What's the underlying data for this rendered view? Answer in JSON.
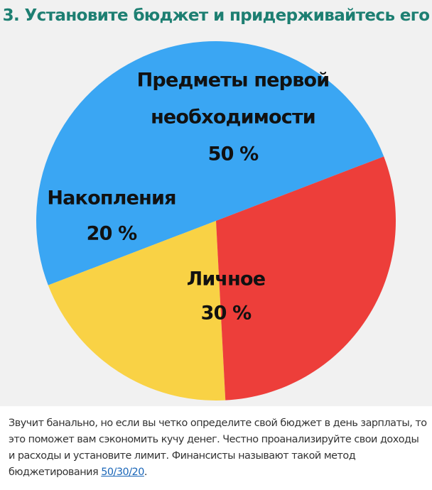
{
  "headline": "3. Установите бюджет и придерживайтесь его",
  "chart_data": {
    "type": "pie",
    "slices": [
      {
        "label_lines": [
          "Предметы первой",
          "необходимости"
        ],
        "value": 50,
        "value_label": "50 %",
        "color": "#3aa6f3"
      },
      {
        "label_lines": [
          "Личное"
        ],
        "value": 30,
        "value_label": "30 %",
        "color": "#ed3e3a"
      },
      {
        "label_lines": [
          "Накопления"
        ],
        "value": 20,
        "value_label": "20 %",
        "color": "#f9d245"
      }
    ]
  },
  "caption": {
    "text": "Звучит банально, но если вы четко определите свой бюджет в день зарплаты, то это поможет вам сэкономить кучу денег. Честно проанализируйте свои доходы и расходы и установите лимит. Финансисты называют такой метод бюджетирования",
    "link_text": "50/30/20",
    "tail": "."
  }
}
